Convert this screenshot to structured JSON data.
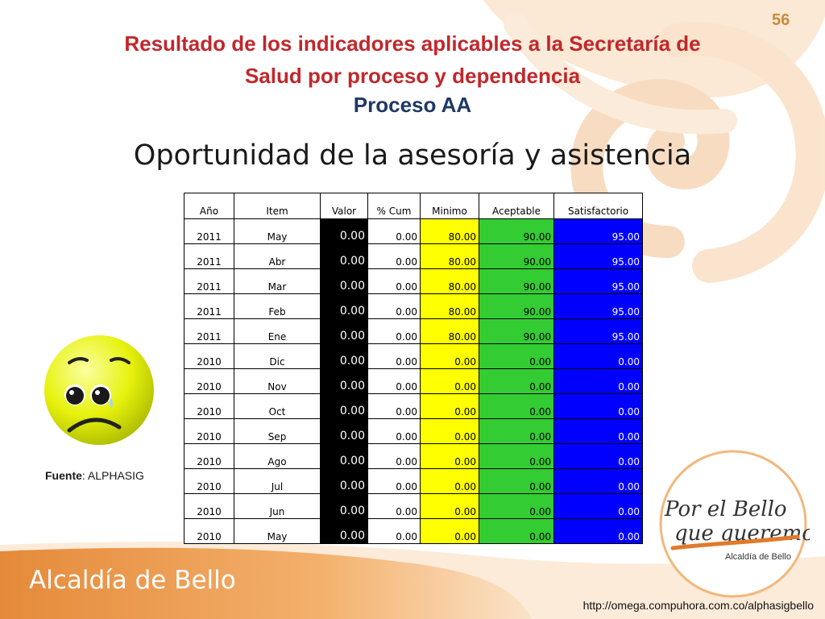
{
  "page_number": "56",
  "title_line1": "Resultado de los indicadores aplicables a la Secretaría de",
  "title_line2": "Salud por proceso y dependencia",
  "process_title": "Proceso AA",
  "indicator_title": "Oportunidad de la asesoría y asistencia",
  "colors": {
    "title_red": "#c0282c",
    "title_blue": "#1f3864",
    "valor_bg": "#000000",
    "minimo_bg": "#ffff00",
    "aceptable_bg": "#33cc33",
    "satisfactorio_bg": "#0000ff",
    "brand_orange": "#e8822a"
  },
  "table": {
    "headers": {
      "ano": "Año",
      "item": "Item",
      "valor": "Valor",
      "cum": "% Cum",
      "minimo": "Minimo",
      "aceptable": "Aceptable",
      "satisfactorio": "Satisfactorio"
    },
    "rows": [
      {
        "ano": "2011",
        "item": "May",
        "valor": "0.00",
        "cum": "0.00",
        "minimo": "80.00",
        "aceptable": "90.00",
        "satisfactorio": "95.00"
      },
      {
        "ano": "2011",
        "item": "Abr",
        "valor": "0.00",
        "cum": "0.00",
        "minimo": "80.00",
        "aceptable": "90.00",
        "satisfactorio": "95.00"
      },
      {
        "ano": "2011",
        "item": "Mar",
        "valor": "0.00",
        "cum": "0.00",
        "minimo": "80.00",
        "aceptable": "90.00",
        "satisfactorio": "95.00"
      },
      {
        "ano": "2011",
        "item": "Feb",
        "valor": "0.00",
        "cum": "0.00",
        "minimo": "80.00",
        "aceptable": "90.00",
        "satisfactorio": "95.00"
      },
      {
        "ano": "2011",
        "item": "Ene",
        "valor": "0.00",
        "cum": "0.00",
        "minimo": "80.00",
        "aceptable": "90.00",
        "satisfactorio": "95.00"
      },
      {
        "ano": "2010",
        "item": "Dic",
        "valor": "0.00",
        "cum": "0.00",
        "minimo": "0.00",
        "aceptable": "0.00",
        "satisfactorio": "0.00"
      },
      {
        "ano": "2010",
        "item": "Nov",
        "valor": "0.00",
        "cum": "0.00",
        "minimo": "0.00",
        "aceptable": "0.00",
        "satisfactorio": "0.00"
      },
      {
        "ano": "2010",
        "item": "Oct",
        "valor": "0.00",
        "cum": "0.00",
        "minimo": "0.00",
        "aceptable": "0.00",
        "satisfactorio": "0.00"
      },
      {
        "ano": "2010",
        "item": "Sep",
        "valor": "0.00",
        "cum": "0.00",
        "minimo": "0.00",
        "aceptable": "0.00",
        "satisfactorio": "0.00"
      },
      {
        "ano": "2010",
        "item": "Ago",
        "valor": "0.00",
        "cum": "0.00",
        "minimo": "0.00",
        "aceptable": "0.00",
        "satisfactorio": "0.00"
      },
      {
        "ano": "2010",
        "item": "Jul",
        "valor": "0.00",
        "cum": "0.00",
        "minimo": "0.00",
        "aceptable": "0.00",
        "satisfactorio": "0.00"
      },
      {
        "ano": "2010",
        "item": "Jun",
        "valor": "0.00",
        "cum": "0.00",
        "minimo": "0.00",
        "aceptable": "0.00",
        "satisfactorio": "0.00"
      },
      {
        "ano": "2010",
        "item": "May",
        "valor": "0.00",
        "cum": "0.00",
        "minimo": "0.00",
        "aceptable": "0.00",
        "satisfactorio": "0.00"
      }
    ]
  },
  "emoticon_icon": "sad-face-icon",
  "source_label": "Fuente",
  "source_value": ": ALPHASIG",
  "logo": {
    "line1": "Por el Bello",
    "line2": "que queremos",
    "caption": "Alcaldía de Bello"
  },
  "footer_brand": "Alcaldía de Bello",
  "footer_url": "http://omega.compuhora.com.co/alphasigbello"
}
